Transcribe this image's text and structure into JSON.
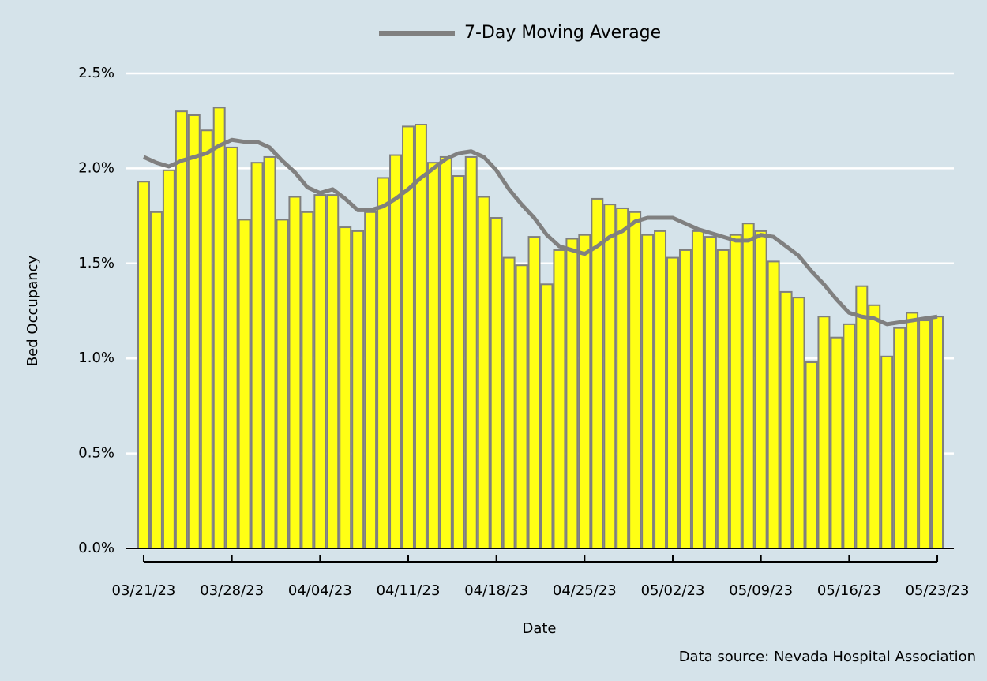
{
  "chart_data": {
    "type": "bar",
    "x_label": "Date",
    "y_label": "Bed Occupancy",
    "source": "Data source: Nevada Hospital Association",
    "legend_position": "top",
    "grid": true,
    "categories": [
      "03/21/23",
      null,
      null,
      null,
      null,
      null,
      null,
      "03/28/23",
      null,
      null,
      null,
      null,
      null,
      null,
      "04/04/23",
      null,
      null,
      null,
      null,
      null,
      null,
      "04/11/23",
      null,
      null,
      null,
      null,
      null,
      null,
      "04/18/23",
      null,
      null,
      null,
      null,
      null,
      null,
      "04/25/23",
      null,
      null,
      null,
      null,
      null,
      null,
      "05/02/23",
      null,
      null,
      null,
      null,
      null,
      null,
      "05/09/23",
      null,
      null,
      null,
      null,
      null,
      null,
      "05/16/23",
      null,
      null,
      null,
      null,
      null,
      null,
      "05/23/23"
    ],
    "ylim": [
      0,
      2.5
    ],
    "yticks": [
      {
        "value": 0,
        "label": "0.0%"
      },
      {
        "value": 0.5,
        "label": "0.5%"
      },
      {
        "value": 1,
        "label": "1.0%"
      },
      {
        "value": 1.5,
        "label": "1.5%"
      },
      {
        "value": 2,
        "label": "2.0%"
      },
      {
        "value": 2.5,
        "label": "2.5%"
      }
    ],
    "series": [
      {
        "type": "bar",
        "color": "#ffff14",
        "edge_color": "#7f7f7f",
        "values": [
          1.93,
          1.77,
          1.99,
          2.3,
          2.28,
          2.2,
          2.32,
          2.11,
          1.73,
          2.03,
          2.06,
          1.73,
          1.85,
          1.77,
          1.86,
          1.86,
          1.69,
          1.67,
          1.77,
          1.95,
          2.07,
          2.22,
          2.23,
          2.03,
          2.06,
          1.96,
          2.06,
          1.85,
          1.74,
          1.53,
          1.49,
          1.64,
          1.39,
          1.57,
          1.63,
          1.65,
          1.84,
          1.81,
          1.79,
          1.77,
          1.65,
          1.67,
          1.53,
          1.57,
          1.67,
          1.64,
          1.57,
          1.65,
          1.71,
          1.67,
          1.51,
          1.35,
          1.32,
          0.98,
          1.22,
          1.11,
          1.18,
          1.38,
          1.28,
          1.01,
          1.16,
          1.24,
          1.2,
          1.22
        ]
      },
      {
        "type": "line",
        "name": "7-Day Moving Average",
        "color": "#808080",
        "values": [
          2.06,
          2.03,
          2.01,
          2.04,
          2.06,
          2.08,
          2.12,
          2.15,
          2.14,
          2.14,
          2.11,
          2.04,
          1.98,
          1.9,
          1.87,
          1.89,
          1.84,
          1.78,
          1.78,
          1.8,
          1.84,
          1.89,
          1.95,
          2.0,
          2.05,
          2.08,
          2.09,
          2.06,
          1.99,
          1.89,
          1.81,
          1.74,
          1.65,
          1.59,
          1.57,
          1.55,
          1.59,
          1.64,
          1.67,
          1.72,
          1.74,
          1.74,
          1.74,
          1.71,
          1.68,
          1.66,
          1.64,
          1.62,
          1.62,
          1.65,
          1.64,
          1.59,
          1.54,
          1.46,
          1.39,
          1.31,
          1.24,
          1.22,
          1.21,
          1.18,
          1.19,
          1.2,
          1.21,
          1.22
        ]
      }
    ]
  }
}
